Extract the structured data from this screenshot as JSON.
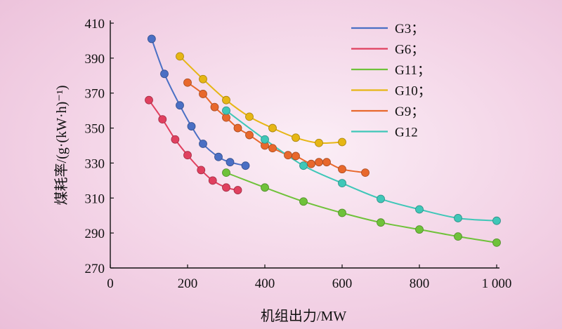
{
  "chart_data": {
    "type": "scatter",
    "xlabel": "机组出力/MW",
    "ylabel": "煤耗率/(g·(kW·h)⁻¹)",
    "xlim": [
      0,
      1000
    ],
    "ylim": [
      270,
      410
    ],
    "x_ticks": [
      0,
      200,
      400,
      600,
      800,
      1000
    ],
    "x_tick_labels": [
      "0",
      "200",
      "400",
      "600",
      "800",
      "1 000"
    ],
    "y_ticks": [
      270,
      290,
      310,
      330,
      350,
      370,
      390,
      410
    ],
    "y_tick_labels": [
      "270",
      "290",
      "310",
      "330",
      "350",
      "370",
      "390",
      "410"
    ],
    "grid": false,
    "legend_position": "top-right",
    "series": [
      {
        "name": "G3；",
        "color": "#4a6fc4",
        "x": [
          107,
          140,
          180,
          210,
          240,
          280,
          310,
          350
        ],
        "y": [
          401,
          381,
          363,
          351,
          341,
          333.5,
          330.5,
          328.5
        ]
      },
      {
        "name": "G6；",
        "color": "#e0405f",
        "x": [
          100,
          135,
          168,
          200,
          235,
          265,
          300,
          330
        ],
        "y": [
          366,
          355,
          343.5,
          334.5,
          326,
          320,
          316,
          314.5
        ]
      },
      {
        "name": "G11；",
        "color": "#6fc23a",
        "x": [
          300,
          400,
          500,
          600,
          700,
          800,
          900,
          1000
        ],
        "y": [
          324.5,
          316,
          308,
          301.5,
          296,
          292,
          288,
          284.5
        ]
      },
      {
        "name": "G10；",
        "color": "#e6b614",
        "x": [
          180,
          240,
          300,
          360,
          420,
          480,
          540,
          600
        ],
        "y": [
          391,
          378,
          366,
          356.5,
          350,
          344.5,
          341.5,
          342
        ]
      },
      {
        "name": "G9；",
        "color": "#e8682c",
        "x": [
          200,
          240,
          270,
          300,
          330,
          360,
          400,
          420,
          460,
          480,
          520,
          540,
          560,
          600,
          660
        ],
        "y": [
          376,
          369.5,
          362,
          356,
          350,
          346,
          340,
          338.5,
          334.5,
          334,
          329.5,
          330.5,
          330.5,
          326.5,
          324.5
        ]
      },
      {
        "name": "G12",
        "color": "#3fc7b8",
        "x": [
          300,
          400,
          500,
          600,
          700,
          800,
          900,
          1000
        ],
        "y": [
          360,
          343.5,
          328.5,
          318.5,
          309.5,
          303.5,
          298.5,
          297
        ]
      }
    ]
  }
}
